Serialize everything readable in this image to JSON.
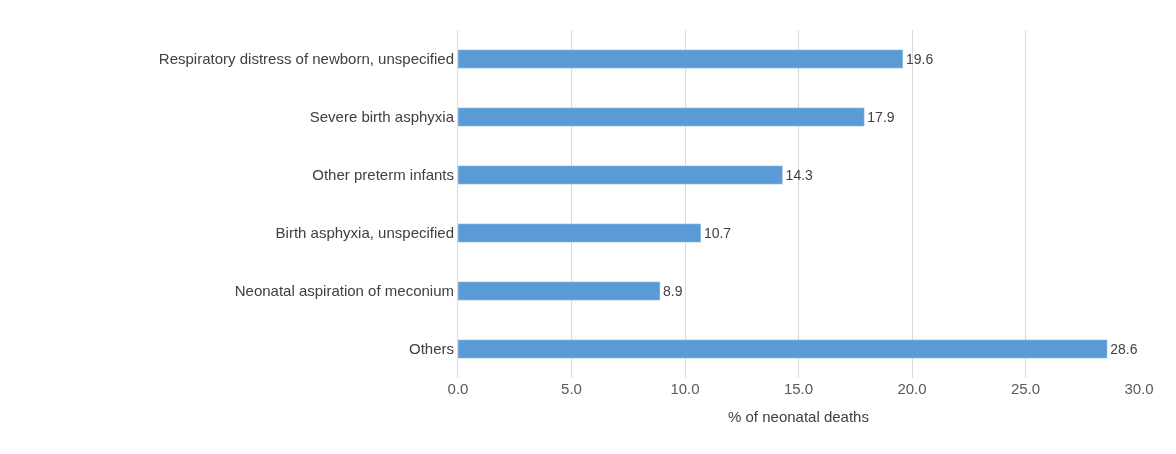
{
  "chart_data": {
    "type": "bar",
    "orientation": "horizontal",
    "xlabel": "% of neonatal deaths",
    "categories": [
      "Respiratory distress of newborn, unspecified",
      "Severe birth asphyxia",
      "Other preterm infants",
      "Birth asphyxia, unspecified",
      "Neonatal aspiration of meconium",
      "Others"
    ],
    "values": [
      19.6,
      17.9,
      14.3,
      10.7,
      8.9,
      28.6
    ],
    "color": "#5b9bd5",
    "data_labels": true,
    "grid": "x",
    "xlim": [
      0,
      30
    ],
    "xticks": [
      {
        "value": 0,
        "label": "0.0"
      },
      {
        "value": 5,
        "label": "5.0"
      },
      {
        "value": 10,
        "label": "10.0"
      },
      {
        "value": 15,
        "label": "15.0"
      },
      {
        "value": 20,
        "label": "20.0"
      },
      {
        "value": 25,
        "label": "25.0"
      },
      {
        "value": 30,
        "label": "30.0"
      }
    ]
  }
}
